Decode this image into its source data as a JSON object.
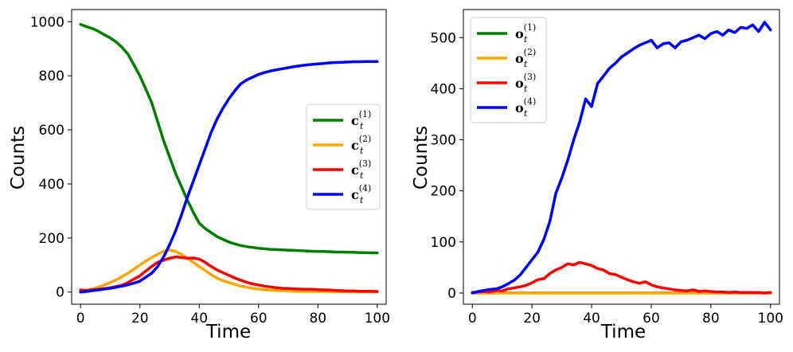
{
  "chart_data": [
    {
      "type": "line",
      "xlabel": "Time",
      "ylabel": "Counts",
      "xlim": [
        -3,
        103
      ],
      "ylim": [
        -45,
        1045
      ],
      "xticks": [
        0,
        20,
        40,
        60,
        80,
        100
      ],
      "yticks": [
        0,
        200,
        400,
        600,
        800,
        1000
      ],
      "legend_placement": "center-right",
      "x": [
        0,
        2,
        4,
        6,
        8,
        10,
        12,
        14,
        16,
        18,
        20,
        22,
        24,
        26,
        28,
        30,
        32,
        34,
        36,
        38,
        40,
        42,
        44,
        46,
        48,
        50,
        52,
        54,
        56,
        58,
        60,
        62,
        64,
        66,
        68,
        70,
        72,
        74,
        76,
        78,
        80,
        82,
        84,
        86,
        88,
        90,
        92,
        94,
        96,
        98,
        100
      ],
      "series": [
        {
          "name": "c_t^(1)",
          "legend_main": "c",
          "legend_sub": "t",
          "legend_sup": "(1)",
          "color": "#008000",
          "values": [
            990,
            982,
            975,
            965,
            952,
            940,
            925,
            905,
            880,
            840,
            800,
            750,
            700,
            630,
            560,
            500,
            440,
            390,
            340,
            295,
            255,
            235,
            220,
            205,
            195,
            185,
            178,
            172,
            168,
            165,
            162,
            160,
            158,
            157,
            156,
            155,
            154,
            153,
            152,
            151,
            150,
            150,
            149,
            148,
            148,
            147,
            147,
            146,
            146,
            145,
            145
          ]
        },
        {
          "name": "c_t^(2)",
          "legend_main": "c",
          "legend_sub": "t",
          "legend_sup": "(2)",
          "color": "#FFA500",
          "values": [
            2,
            6,
            12,
            18,
            26,
            35,
            45,
            57,
            70,
            85,
            100,
            115,
            128,
            140,
            150,
            156,
            150,
            140,
            125,
            110,
            95,
            80,
            65,
            52,
            42,
            35,
            28,
            22,
            18,
            14,
            11,
            9,
            7,
            6,
            5,
            4,
            3,
            3,
            2,
            2,
            2,
            2,
            1,
            1,
            1,
            1,
            1,
            1,
            1,
            1,
            1
          ]
        },
        {
          "name": "c_t^(3)",
          "legend_main": "c",
          "legend_sub": "t",
          "legend_sup": "(3)",
          "color": "#FF0000",
          "values": [
            8,
            6,
            8,
            10,
            13,
            16,
            20,
            25,
            35,
            48,
            60,
            78,
            95,
            110,
            118,
            125,
            130,
            128,
            125,
            126,
            122,
            110,
            95,
            82,
            72,
            62,
            52,
            44,
            36,
            30,
            26,
            22,
            19,
            16,
            14,
            13,
            12,
            11,
            10,
            10,
            9,
            8,
            7,
            6,
            5,
            4,
            4,
            3,
            3,
            3,
            2
          ]
        },
        {
          "name": "c_t^(4)",
          "legend_main": "c",
          "legend_sub": "t",
          "legend_sup": "(4)",
          "color": "#0000FF",
          "values": [
            0,
            2,
            5,
            8,
            11,
            14,
            18,
            22,
            27,
            33,
            40,
            55,
            70,
            95,
            130,
            175,
            225,
            285,
            350,
            410,
            470,
            530,
            590,
            640,
            680,
            715,
            745,
            770,
            785,
            795,
            805,
            812,
            818,
            822,
            826,
            830,
            834,
            837,
            840,
            842,
            844,
            846,
            848,
            849,
            850,
            851,
            852,
            852,
            853,
            853,
            853
          ]
        }
      ]
    },
    {
      "type": "line",
      "xlabel": "Time",
      "ylabel": "Counts",
      "xlim": [
        -3,
        103
      ],
      "ylim": [
        -22,
        555
      ],
      "xticks": [
        0,
        20,
        40,
        60,
        80,
        100
      ],
      "yticks": [
        0,
        100,
        200,
        300,
        400,
        500
      ],
      "legend_placement": "top-left",
      "x": [
        0,
        2,
        4,
        6,
        8,
        10,
        12,
        14,
        16,
        18,
        20,
        22,
        24,
        26,
        28,
        30,
        32,
        34,
        36,
        38,
        40,
        42,
        44,
        46,
        48,
        50,
        52,
        54,
        56,
        58,
        60,
        62,
        64,
        66,
        68,
        70,
        72,
        74,
        76,
        78,
        80,
        82,
        84,
        86,
        88,
        90,
        92,
        94,
        96,
        98,
        100
      ],
      "series": [
        {
          "name": "o_t^(1)",
          "legend_main": "o",
          "legend_sub": "t",
          "legend_sup": "(1)",
          "color": "#008000",
          "values": [
            0,
            0,
            0,
            0,
            0,
            0,
            0,
            0,
            0,
            0,
            0,
            0,
            0,
            0,
            0,
            0,
            0,
            0,
            0,
            0,
            0,
            0,
            0,
            0,
            0,
            0,
            0,
            0,
            0,
            0,
            0,
            0,
            0,
            0,
            0,
            0,
            0,
            0,
            0,
            0,
            0,
            0,
            0,
            0,
            0,
            0,
            0,
            0,
            0,
            0,
            0
          ]
        },
        {
          "name": "o_t^(2)",
          "legend_main": "o",
          "legend_sub": "t",
          "legend_sup": "(2)",
          "color": "#FFA500",
          "values": [
            0,
            0,
            0,
            0,
            0,
            0,
            0,
            0,
            0,
            0,
            0,
            0,
            0,
            0,
            0,
            0,
            0,
            0,
            0,
            0,
            0,
            0,
            0,
            0,
            0,
            0,
            0,
            0,
            0,
            0,
            0,
            0,
            0,
            0,
            0,
            0,
            0,
            0,
            0,
            0,
            0,
            0,
            0,
            0,
            0,
            0,
            0,
            0,
            0,
            0,
            0
          ]
        },
        {
          "name": "o_t^(3)",
          "legend_main": "o",
          "legend_sub": "t",
          "legend_sup": "(3)",
          "color": "#FF0000",
          "values": [
            1,
            2,
            3,
            2,
            5,
            4,
            8,
            10,
            12,
            15,
            20,
            26,
            28,
            38,
            45,
            50,
            57,
            55,
            60,
            57,
            54,
            48,
            45,
            38,
            36,
            31,
            26,
            22,
            19,
            22,
            16,
            12,
            10,
            8,
            6,
            5,
            4,
            6,
            3,
            4,
            3,
            2,
            2,
            1,
            2,
            1,
            1,
            1,
            1,
            0,
            1
          ]
        },
        {
          "name": "o_t^(4)",
          "legend_main": "o",
          "legend_sub": "t",
          "legend_sup": "(4)",
          "color": "#0000FF",
          "values": [
            0,
            3,
            5,
            7,
            8,
            12,
            18,
            25,
            35,
            50,
            65,
            80,
            105,
            140,
            195,
            225,
            260,
            300,
            335,
            380,
            365,
            410,
            425,
            440,
            450,
            462,
            470,
            478,
            485,
            490,
            495,
            480,
            488,
            490,
            480,
            492,
            495,
            500,
            505,
            498,
            508,
            512,
            505,
            515,
            510,
            520,
            518,
            525,
            512,
            530,
            515
          ]
        }
      ]
    }
  ]
}
